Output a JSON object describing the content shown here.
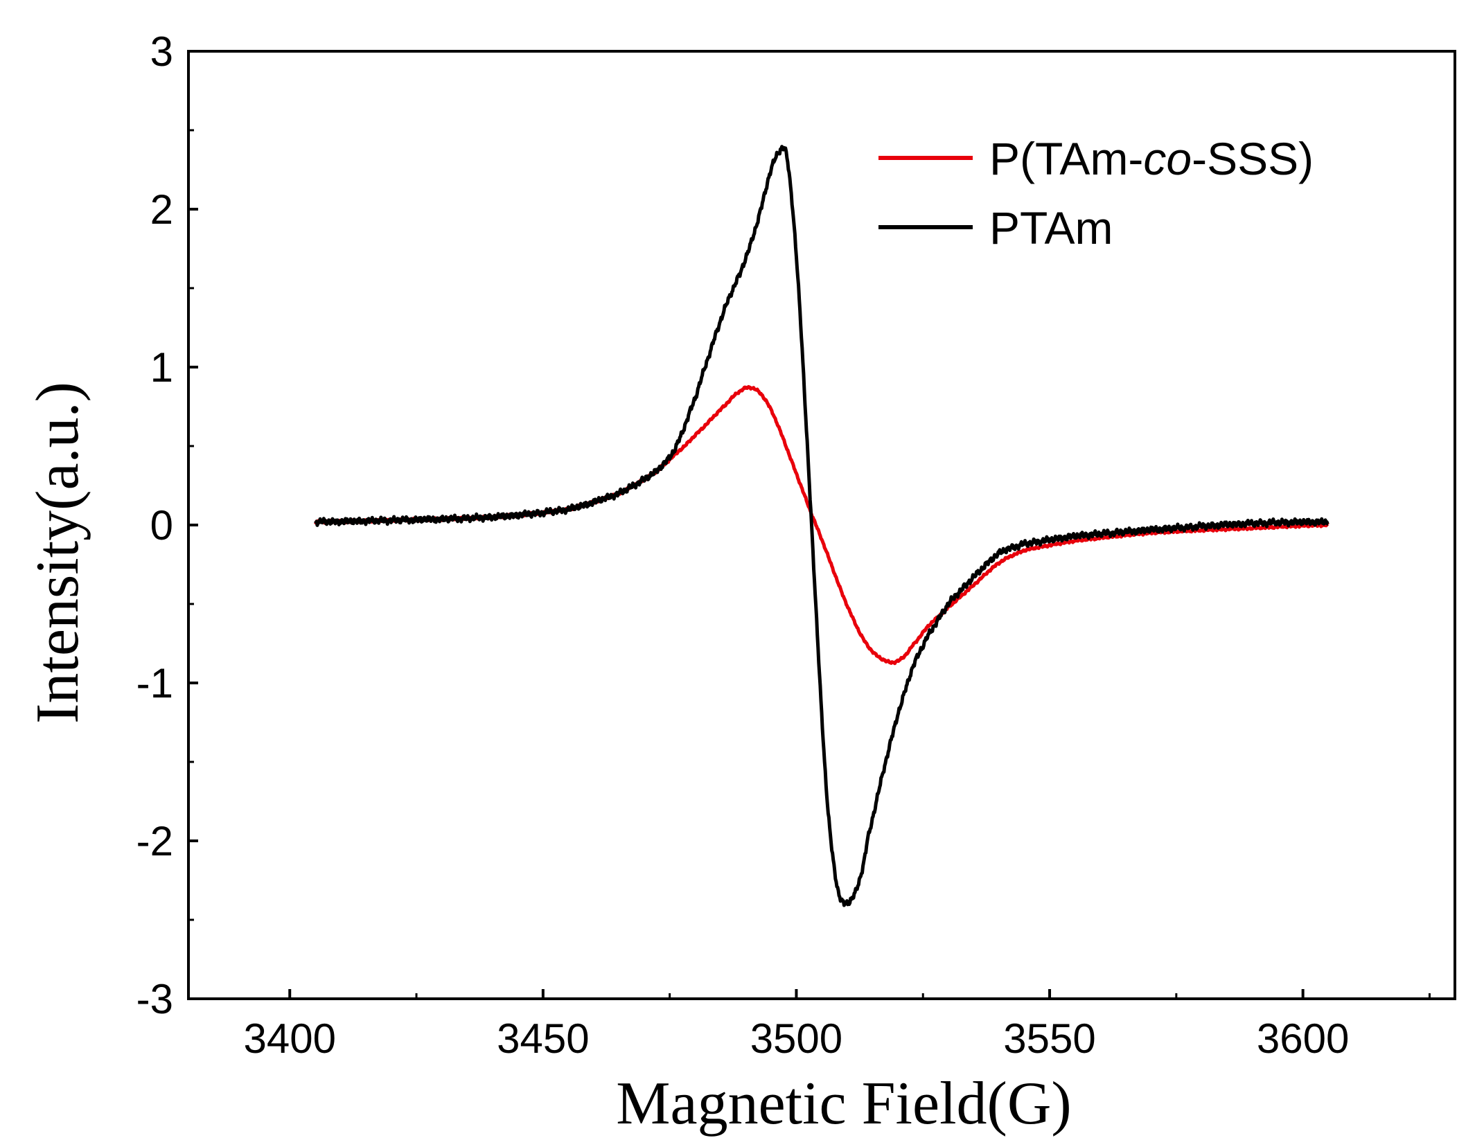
{
  "chart_data": {
    "type": "line",
    "title": "",
    "xlabel": "Magnetic Field(G)",
    "ylabel": "Intensity(a.u.)",
    "xlim": [
      3380,
      3630
    ],
    "ylim": [
      -3,
      3
    ],
    "x_ticks": [
      3400,
      3450,
      3500,
      3550,
      3600
    ],
    "x_tick_labels": [
      "3400",
      "3450",
      "3500",
      "3550",
      "3600"
    ],
    "y_ticks": [
      -3,
      -2,
      -1,
      0,
      1,
      2,
      3
    ],
    "y_tick_labels": [
      "-3",
      "-2",
      "-1",
      "0",
      "1",
      "2",
      "3"
    ],
    "grid": false,
    "legend_position": "top-right",
    "series": [
      {
        "name": "P(TAm-co-SSS)",
        "legend_parts": [
          "P(TAm-",
          "co",
          "-SSS)"
        ],
        "color": "#e8000b",
        "x": [
          3405,
          3420,
          3440,
          3455,
          3465,
          3472,
          3478,
          3482,
          3486,
          3489,
          3491,
          3493,
          3495,
          3497,
          3499,
          3501,
          3503,
          3505,
          3507,
          3509,
          3511,
          3513,
          3515,
          3517,
          3519,
          3521,
          3523,
          3526,
          3530,
          3535,
          3540,
          3545,
          3555,
          3570,
          3590,
          3605
        ],
        "values": [
          0.02,
          0.03,
          0.05,
          0.1,
          0.2,
          0.33,
          0.5,
          0.63,
          0.76,
          0.85,
          0.87,
          0.83,
          0.73,
          0.58,
          0.41,
          0.24,
          0.07,
          -0.09,
          -0.26,
          -0.43,
          -0.58,
          -0.71,
          -0.8,
          -0.85,
          -0.87,
          -0.84,
          -0.76,
          -0.64,
          -0.52,
          -0.38,
          -0.24,
          -0.16,
          -0.1,
          -0.05,
          -0.02,
          0.0
        ]
      },
      {
        "name": "PTAm",
        "legend_parts": [
          "PTAm"
        ],
        "color": "#000000",
        "x": [
          3405,
          3420,
          3440,
          3455,
          3465,
          3472,
          3476,
          3480,
          3483,
          3486,
          3489,
          3491,
          3493,
          3495,
          3497,
          3498,
          3499,
          3500,
          3501,
          3502,
          3503,
          3504,
          3505,
          3506,
          3507,
          3508,
          3509,
          3510,
          3511,
          3512,
          3513,
          3514,
          3516,
          3518,
          3520,
          3523,
          3526,
          3530,
          3535,
          3540,
          3545,
          3555,
          3570,
          3590,
          3605
        ],
        "values": [
          0.02,
          0.03,
          0.05,
          0.1,
          0.2,
          0.33,
          0.48,
          0.8,
          1.1,
          1.38,
          1.6,
          1.78,
          2.0,
          2.25,
          2.38,
          2.35,
          2.1,
          1.7,
          1.2,
          0.6,
          0.0,
          -0.6,
          -1.2,
          -1.7,
          -2.05,
          -2.28,
          -2.38,
          -2.4,
          -2.36,
          -2.3,
          -2.18,
          -2.0,
          -1.72,
          -1.45,
          -1.2,
          -0.9,
          -0.7,
          -0.5,
          -0.33,
          -0.18,
          -0.12,
          -0.07,
          -0.03,
          0.01,
          0.02
        ]
      }
    ]
  }
}
